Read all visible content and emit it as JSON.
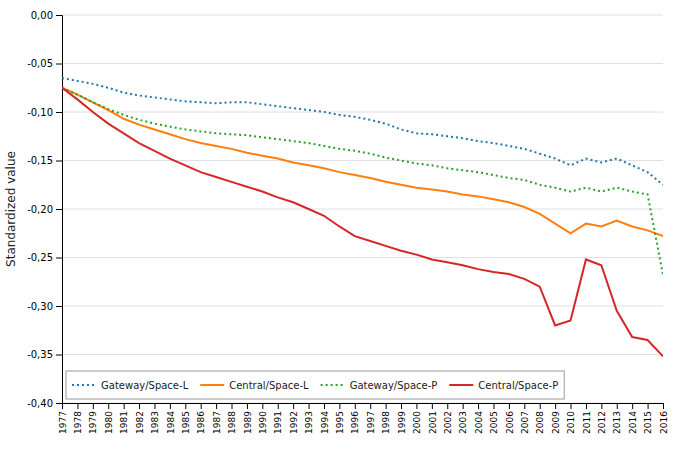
{
  "chart_data": {
    "type": "line",
    "ylabel": "Standardized value",
    "x": [
      1977,
      1978,
      1979,
      1980,
      1981,
      1982,
      1983,
      1984,
      1985,
      1986,
      1987,
      1988,
      1989,
      1990,
      1991,
      1992,
      1993,
      1994,
      1995,
      1996,
      1997,
      1998,
      1999,
      2000,
      2001,
      2002,
      2003,
      2004,
      2005,
      2006,
      2007,
      2008,
      2009,
      2010,
      2011,
      2012,
      2013,
      2014,
      2015,
      2016
    ],
    "xlim": [
      1977,
      2016
    ],
    "xticks": [
      1977,
      1978,
      1979,
      1980,
      1981,
      1982,
      1983,
      1984,
      1985,
      1986,
      1987,
      1988,
      1989,
      1990,
      1991,
      1992,
      1993,
      1994,
      1995,
      1996,
      1997,
      1998,
      1999,
      2000,
      2001,
      2002,
      2003,
      2004,
      2005,
      2006,
      2007,
      2008,
      2009,
      2010,
      2011,
      2012,
      2013,
      2014,
      2015,
      2016
    ],
    "ylim": [
      -0.4,
      0.0
    ],
    "yticks": [
      {
        "value": 0.0,
        "label": "0,00"
      },
      {
        "value": -0.05,
        "label": "-0,05"
      },
      {
        "value": -0.1,
        "label": "-0,10"
      },
      {
        "value": -0.15,
        "label": "-0,15"
      },
      {
        "value": -0.2,
        "label": "-0,20"
      },
      {
        "value": -0.25,
        "label": "-0,25"
      },
      {
        "value": -0.3,
        "label": "-0,30"
      },
      {
        "value": -0.35,
        "label": "-0,35"
      },
      {
        "value": -0.4,
        "label": "-0,40"
      }
    ],
    "grid": true,
    "legend": "lower left",
    "series": [
      {
        "name": "Gateway/Space-L",
        "line_style": "dotted",
        "values": [
          -0.065,
          -0.068,
          -0.071,
          -0.075,
          -0.08,
          -0.083,
          -0.085,
          -0.087,
          -0.089,
          -0.09,
          -0.091,
          -0.09,
          -0.09,
          -0.092,
          -0.094,
          -0.096,
          -0.098,
          -0.1,
          -0.103,
          -0.105,
          -0.108,
          -0.112,
          -0.118,
          -0.122,
          -0.123,
          -0.125,
          -0.127,
          -0.13,
          -0.132,
          -0.135,
          -0.138,
          -0.143,
          -0.148,
          -0.155,
          -0.148,
          -0.152,
          -0.148,
          -0.155,
          -0.162,
          -0.175
        ]
      },
      {
        "name": "Central/Space-L",
        "line_style": "solid",
        "values": [
          -0.075,
          -0.082,
          -0.09,
          -0.098,
          -0.107,
          -0.113,
          -0.118,
          -0.123,
          -0.128,
          -0.132,
          -0.135,
          -0.138,
          -0.142,
          -0.145,
          -0.148,
          -0.152,
          -0.155,
          -0.158,
          -0.162,
          -0.165,
          -0.168,
          -0.172,
          -0.175,
          -0.178,
          -0.18,
          -0.182,
          -0.185,
          -0.187,
          -0.19,
          -0.193,
          -0.198,
          -0.205,
          -0.215,
          -0.225,
          -0.215,
          -0.218,
          -0.212,
          -0.218,
          -0.222,
          -0.228
        ]
      },
      {
        "name": "Gateway/Space-P",
        "line_style": "dotted",
        "values": [
          -0.075,
          -0.082,
          -0.09,
          -0.097,
          -0.103,
          -0.108,
          -0.112,
          -0.115,
          -0.118,
          -0.12,
          -0.122,
          -0.123,
          -0.124,
          -0.126,
          -0.128,
          -0.13,
          -0.132,
          -0.135,
          -0.138,
          -0.14,
          -0.143,
          -0.147,
          -0.15,
          -0.153,
          -0.155,
          -0.158,
          -0.16,
          -0.162,
          -0.165,
          -0.168,
          -0.17,
          -0.175,
          -0.178,
          -0.182,
          -0.178,
          -0.182,
          -0.178,
          -0.182,
          -0.185,
          -0.268
        ]
      },
      {
        "name": "Central/Space-P",
        "line_style": "solid",
        "values": [
          -0.075,
          -0.087,
          -0.1,
          -0.112,
          -0.122,
          -0.132,
          -0.14,
          -0.148,
          -0.155,
          -0.162,
          -0.167,
          -0.172,
          -0.177,
          -0.182,
          -0.188,
          -0.193,
          -0.2,
          -0.207,
          -0.218,
          -0.228,
          -0.233,
          -0.238,
          -0.243,
          -0.247,
          -0.252,
          -0.255,
          -0.258,
          -0.262,
          -0.265,
          -0.267,
          -0.272,
          -0.28,
          -0.32,
          -0.315,
          -0.252,
          -0.258,
          -0.305,
          -0.332,
          -0.335,
          -0.352
        ]
      }
    ]
  }
}
